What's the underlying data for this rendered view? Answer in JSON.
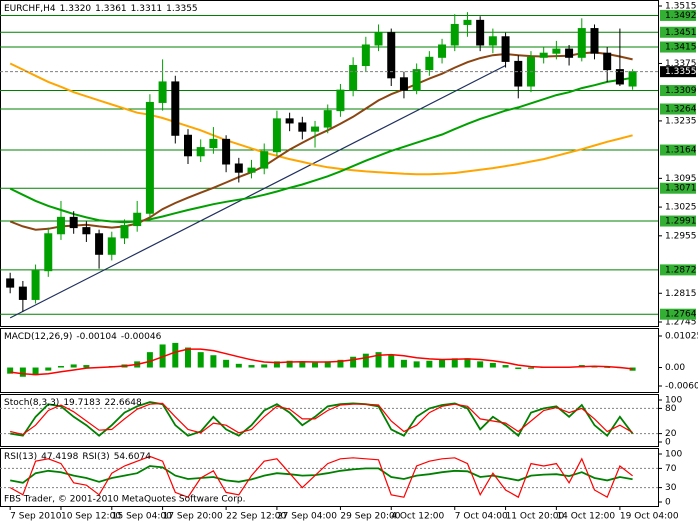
{
  "chart_data": [
    {
      "type": "candlestick",
      "title": "EURCHF,H4",
      "last_labels": [
        "1.3320",
        "1.3361",
        "1.3311",
        "1.3355"
      ],
      "open": [
        1.285,
        1.283,
        1.28,
        1.287,
        1.296,
        1.3,
        1.2975,
        1.296,
        1.291,
        1.295,
        1.298,
        1.301,
        1.328,
        1.333,
        1.32,
        1.315,
        1.317,
        1.319,
        1.313,
        1.311,
        1.312,
        1.316,
        1.324,
        1.323,
        1.321,
        1.322,
        1.326,
        1.331,
        1.337,
        1.342,
        1.345,
        1.334,
        1.331,
        1.336,
        1.339,
        1.342,
        1.347,
        1.348,
        1.342,
        1.344,
        1.338,
        1.332,
        1.339,
        1.34,
        1.341,
        1.339,
        1.346,
        1.34,
        1.336,
        1.332
      ],
      "high": [
        1.2865,
        1.2845,
        1.2885,
        1.2975,
        1.304,
        1.3015,
        1.299,
        1.297,
        1.2965,
        1.2995,
        1.304,
        1.33,
        1.3385,
        1.3345,
        1.3215,
        1.319,
        1.322,
        1.32,
        1.3145,
        1.314,
        1.318,
        1.326,
        1.3255,
        1.3245,
        1.3235,
        1.3275,
        1.3325,
        1.339,
        1.344,
        1.347,
        1.346,
        1.3355,
        1.3375,
        1.3405,
        1.3435,
        1.3495,
        1.35,
        1.349,
        1.346,
        1.345,
        1.3395,
        1.3405,
        1.3415,
        1.343,
        1.342,
        1.3485,
        1.347,
        1.3415,
        1.346,
        1.3361
      ],
      "low": [
        1.2815,
        1.277,
        1.279,
        1.2855,
        1.2945,
        1.296,
        1.294,
        1.2875,
        1.2895,
        1.2935,
        1.2965,
        1.3,
        1.326,
        1.318,
        1.313,
        1.3135,
        1.3155,
        1.311,
        1.3085,
        1.3095,
        1.3105,
        1.315,
        1.321,
        1.319,
        1.317,
        1.3205,
        1.3245,
        1.3295,
        1.3355,
        1.3405,
        1.332,
        1.329,
        1.33,
        1.3345,
        1.3375,
        1.3405,
        1.344,
        1.3405,
        1.34,
        1.3365,
        1.329,
        1.3305,
        1.3375,
        1.3385,
        1.337,
        1.338,
        1.3385,
        1.333,
        1.332,
        1.3311
      ],
      "close": [
        1.283,
        1.28,
        1.287,
        1.296,
        1.3,
        1.2975,
        1.296,
        1.291,
        1.295,
        1.298,
        1.301,
        1.328,
        1.333,
        1.32,
        1.315,
        1.317,
        1.319,
        1.313,
        1.311,
        1.312,
        1.316,
        1.324,
        1.323,
        1.321,
        1.322,
        1.326,
        1.331,
        1.337,
        1.342,
        1.345,
        1.334,
        1.331,
        1.336,
        1.339,
        1.342,
        1.347,
        1.348,
        1.342,
        1.344,
        1.338,
        1.332,
        1.339,
        1.34,
        1.341,
        1.339,
        1.346,
        1.34,
        1.336,
        1.3325,
        1.3355
      ],
      "bull_color": "#00a000",
      "bear_color": "#000000",
      "series": [
        {
          "color": "#ffa500",
          "values": [
            1.3375,
            1.336,
            1.3345,
            1.333,
            1.3318,
            1.3305,
            1.3295,
            1.3285,
            1.3275,
            1.3265,
            1.3255,
            1.325,
            1.3242,
            1.3232,
            1.3222,
            1.3212,
            1.32,
            1.3188,
            1.3178,
            1.3168,
            1.3158,
            1.315,
            1.3142,
            1.3135,
            1.3128,
            1.3122,
            1.3118,
            1.3115,
            1.3112,
            1.311,
            1.3108,
            1.3106,
            1.3105,
            1.3105,
            1.3106,
            1.3108,
            1.3112,
            1.3116,
            1.312,
            1.3125,
            1.313,
            1.3136,
            1.3142,
            1.315,
            1.3158,
            1.3166,
            1.3175,
            1.3184,
            1.3192,
            1.32
          ]
        },
        {
          "color": "#00a000",
          "values": [
            1.307,
            1.3055,
            1.304,
            1.3028,
            1.3018,
            1.3008,
            1.3,
            1.2993,
            1.299,
            1.2988,
            1.299,
            1.2995,
            1.3002,
            1.301,
            1.3018,
            1.3025,
            1.3032,
            1.3038,
            1.3043,
            1.3048,
            1.3055,
            1.3063,
            1.3072,
            1.308,
            1.309,
            1.31,
            1.3112,
            1.3125,
            1.3138,
            1.315,
            1.3162,
            1.3172,
            1.3182,
            1.3192,
            1.3202,
            1.3215,
            1.3228,
            1.324,
            1.325,
            1.326,
            1.3268,
            1.3278,
            1.3288,
            1.3298,
            1.3305,
            1.3315,
            1.3322,
            1.333,
            1.3335,
            1.334
          ]
        },
        {
          "color": "#8b4513",
          "values": [
            1.299,
            1.2978,
            1.297,
            1.2972,
            1.2978,
            1.298,
            1.2982,
            1.2978,
            1.2975,
            1.2978,
            1.2985,
            1.3,
            1.302,
            1.3035,
            1.3048,
            1.306,
            1.3072,
            1.3085,
            1.3098,
            1.311,
            1.3125,
            1.3145,
            1.3165,
            1.3182,
            1.3198,
            1.3212,
            1.3228,
            1.3245,
            1.3265,
            1.3285,
            1.33,
            1.3312,
            1.3325,
            1.3338,
            1.335,
            1.3365,
            1.3378,
            1.3388,
            1.3395,
            1.3398,
            1.3395,
            1.3393,
            1.3392,
            1.3393,
            1.3394,
            1.34,
            1.3402,
            1.3398,
            1.3392,
            1.3385
          ]
        }
      ],
      "trendline": {
        "x": [
          0,
          39
        ],
        "y": [
          1.2755,
          1.337
        ],
        "color": "#1f2f5f"
      },
      "levels": [
        1.3492,
        1.3451,
        1.3415,
        1.3309,
        1.3264,
        1.3164,
        1.3071,
        1.2991,
        1.2872,
        1.2764
      ],
      "level_color": "#008000",
      "level_label_color": "#33b033",
      "xlim": [
        -0.8,
        51
      ],
      "xticks": [
        {
          "value": 0,
          "label": "7 Sep 2010"
        },
        {
          "value": 4,
          "label": "10 Sep 12:00"
        },
        {
          "value": 8,
          "label": "15 Sep 04:00"
        },
        {
          "value": 12,
          "label": "17 Sep 20:00"
        },
        {
          "value": 17,
          "label": "22 Sep 12:00"
        },
        {
          "value": 21,
          "label": "27 Sep 04:00"
        },
        {
          "value": 26,
          "label": "29 Sep 20:00"
        },
        {
          "value": 30,
          "label": "4 Oct 12:00"
        },
        {
          "value": 35,
          "label": "7 Oct 04:00"
        },
        {
          "value": 39,
          "label": "11 Oct 20:00"
        },
        {
          "value": 43,
          "label": "14 Oct 12:00"
        },
        {
          "value": 48,
          "label": "19 Oct 04:00"
        }
      ],
      "ylim": [
        1.2745,
        1.3515
      ],
      "yticks": [
        1.3515,
        1.3375,
        1.3235,
        1.3095,
        1.3025,
        1.2955,
        1.2815,
        1.2745
      ],
      "grid": false
    },
    {
      "type": "macd",
      "title": "MACD(12,26,9)",
      "series": [
        {
          "color": "#00a000",
          "values": [
            -0.002,
            -0.003,
            -0.0025,
            -0.001,
            0.0005,
            0.001,
            0.0008,
            0.0,
            0.0005,
            0.001,
            0.002,
            0.005,
            0.0075,
            0.008,
            0.0065,
            0.005,
            0.004,
            0.0025,
            0.0012,
            0.0008,
            0.001,
            0.002,
            0.0022,
            0.0018,
            0.0016,
            0.002,
            0.0025,
            0.0035,
            0.0045,
            0.005,
            0.004,
            0.0025,
            0.002,
            0.0022,
            0.0025,
            0.003,
            0.003,
            0.002,
            0.0015,
            0.0008,
            -0.0005,
            -0.0004,
            0.0,
            0.0003,
            0.0002,
            0.0008,
            0.0005,
            0.0,
            -0.0002,
            -0.00104
          ]
        },
        {
          "color": "#ff0000",
          "values": [
            -0.0015,
            -0.002,
            -0.0023,
            -0.002,
            -0.0014,
            -0.0008,
            -0.0002,
            0.0,
            0.0002,
            0.0005,
            0.001,
            0.002,
            0.0035,
            0.005,
            0.006,
            0.006,
            0.0055,
            0.0045,
            0.0035,
            0.0025,
            0.0018,
            0.0016,
            0.0018,
            0.0019,
            0.0018,
            0.0018,
            0.002,
            0.0025,
            0.0032,
            0.004,
            0.0042,
            0.0038,
            0.0032,
            0.0028,
            0.0026,
            0.0027,
            0.0028,
            0.0026,
            0.0022,
            0.0016,
            0.0008,
            0.0003,
            0.0001,
            0.0001,
            0.0001,
            0.0003,
            0.0004,
            0.0003,
            0.0,
            -0.00046
          ]
        }
      ],
      "ylim": [
        -0.00601,
        0.01025
      ],
      "yticks": [
        0.01025,
        {
          "value": 0,
          "label": "0.00"
        },
        -0.00601
      ]
    },
    {
      "type": "line",
      "title": "Stoch(8,3,3)",
      "series": [
        {
          "color": "#008000",
          "values": [
            20,
            15,
            60,
            90,
            85,
            60,
            40,
            15,
            40,
            70,
            85,
            95,
            90,
            40,
            15,
            25,
            60,
            30,
            15,
            40,
            75,
            90,
            70,
            40,
            60,
            85,
            90,
            92,
            90,
            85,
            30,
            15,
            60,
            80,
            88,
            92,
            80,
            30,
            60,
            40,
            15,
            70,
            80,
            85,
            60,
            88,
            40,
            15,
            60,
            19.7183
          ]
        },
        {
          "color": "#ff0000",
          "values": [
            25,
            18,
            40,
            75,
            88,
            72,
            50,
            28,
            30,
            55,
            78,
            90,
            92,
            60,
            30,
            22,
            45,
            40,
            22,
            30,
            60,
            85,
            78,
            55,
            55,
            75,
            88,
            90,
            90,
            88,
            50,
            25,
            40,
            70,
            85,
            90,
            85,
            55,
            50,
            45,
            25,
            50,
            75,
            82,
            70,
            80,
            55,
            25,
            40,
            22.6648
          ]
        }
      ],
      "ylim": [
        0,
        100
      ],
      "yticks": [
        100,
        80,
        20,
        0
      ]
    },
    {
      "type": "line",
      "series": [
        {
          "name": "RSI(13)",
          "color": "#008000",
          "values": [
            45,
            40,
            60,
            65,
            62,
            55,
            50,
            42,
            50,
            55,
            60,
            75,
            72,
            55,
            48,
            50,
            52,
            45,
            42,
            47,
            55,
            60,
            58,
            55,
            56,
            60,
            65,
            68,
            70,
            70,
            52,
            48,
            55,
            58,
            62,
            65,
            64,
            52,
            55,
            50,
            45,
            55,
            57,
            58,
            54,
            62,
            50,
            45,
            52,
            47.4198
          ]
        },
        {
          "name": "RSI(3)",
          "color": "#ff0000",
          "values": [
            30,
            15,
            85,
            90,
            80,
            40,
            35,
            15,
            60,
            75,
            85,
            95,
            85,
            20,
            10,
            50,
            65,
            20,
            15,
            55,
            85,
            90,
            60,
            30,
            55,
            80,
            90,
            92,
            90,
            88,
            15,
            10,
            75,
            85,
            90,
            92,
            80,
            15,
            60,
            25,
            10,
            80,
            75,
            80,
            40,
            90,
            25,
            10,
            75,
            54.6074
          ]
        }
      ],
      "ylim": [
        0,
        100
      ],
      "yticks": [
        100,
        70,
        30,
        0
      ]
    }
  ],
  "footer": "FBS Trader, © 2001-2010 MetaQuotes Software Corp."
}
